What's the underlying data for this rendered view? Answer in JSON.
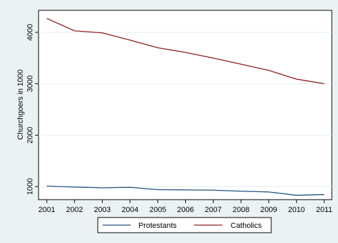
{
  "chart_data": {
    "type": "line",
    "x": [
      2001,
      2002,
      2003,
      2004,
      2005,
      2006,
      2007,
      2008,
      2009,
      2010,
      2011
    ],
    "series": [
      {
        "name": "Protestants",
        "color": "#1f4e79",
        "values": [
          1010,
          990,
          975,
          985,
          940,
          935,
          930,
          910,
          895,
          830,
          845
        ]
      },
      {
        "name": "Catholics",
        "color": "#8b1a1a",
        "values": [
          4270,
          4030,
          3990,
          3850,
          3700,
          3610,
          3500,
          3380,
          3260,
          3090,
          3000
        ]
      }
    ],
    "title": "",
    "xlabel": "",
    "ylabel": "Churchgoers in 1000",
    "xlim": [
      2001,
      2011
    ],
    "ylim": [
      800,
      4300
    ],
    "x_ticks": [
      "2001",
      "2002",
      "2003",
      "2004",
      "2005",
      "2006",
      "2007",
      "2008",
      "2009",
      "2010",
      "2011"
    ],
    "y_ticks": [
      "1000",
      "2000",
      "3000",
      "4000"
    ],
    "grid": true,
    "legend_position": "bottom"
  }
}
